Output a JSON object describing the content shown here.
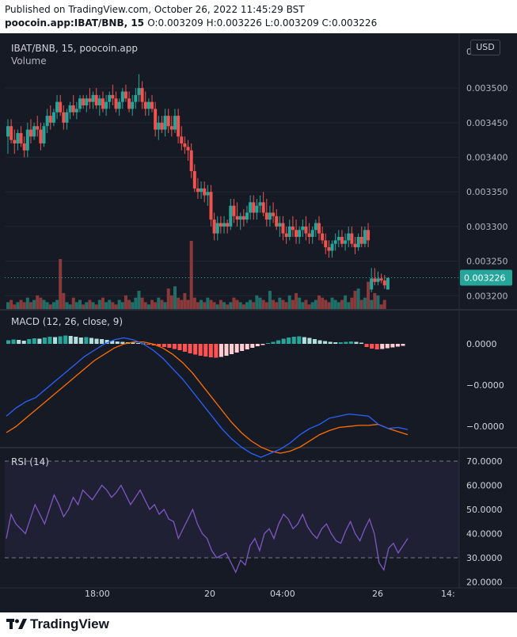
{
  "header": {
    "line1": "Published on TradingView.com, October 26, 2022 11:45:29 BST",
    "symbol": "poocoin.app:IBAT/BNB, 15",
    "ohlc": "O:0.003209 H:0.003226 L:0.003209 C:0.003226"
  },
  "chart_title": "IBAT/BNB, 15, poocoin.app",
  "volume_label": "Volume",
  "macd_label": "MACD (12, 26, close, 9)",
  "rsi_label": "RSI (14)",
  "currency_button": "USD",
  "brand": "TradingView",
  "colors": {
    "up": "#26a69a",
    "down": "#ef5350",
    "macd": "#2962ff",
    "signal": "#ff6d00",
    "rsi": "#7e57c2",
    "hist_up_strong": "#26a69a",
    "hist_up_weak": "#b2dfdb",
    "hist_down_strong": "#ff5252",
    "hist_down_weak": "#ffcdd2",
    "background": "#161a25"
  },
  "chart_data": [
    {
      "type": "candlestick",
      "title": "IBAT/BNB, 15, poocoin.app",
      "last_price": "0.003226",
      "price_ticks": [
        "0.003500",
        "0.003450",
        "0.003400",
        "0.003350",
        "0.003300",
        "0.003250",
        "0.003200"
      ],
      "price_range": [
        0.00319,
        0.00357
      ],
      "x_ticks": [
        "18:00",
        "20",
        "04:00",
        "26",
        "14:"
      ],
      "ohlc": [
        [
          0.00343,
          0.003455,
          0.003405,
          0.003445
        ],
        [
          0.003445,
          0.003455,
          0.00342,
          0.003425
        ],
        [
          0.003425,
          0.00344,
          0.003405,
          0.00342
        ],
        [
          0.00342,
          0.00344,
          0.00341,
          0.003435
        ],
        [
          0.003435,
          0.003445,
          0.003415,
          0.00342
        ],
        [
          0.00342,
          0.00343,
          0.0034,
          0.00341
        ],
        [
          0.00341,
          0.00345,
          0.0034,
          0.00344
        ],
        [
          0.00344,
          0.003455,
          0.00342,
          0.00343
        ],
        [
          0.00343,
          0.00345,
          0.003425,
          0.003445
        ],
        [
          0.003445,
          0.00346,
          0.00343,
          0.00344
        ],
        [
          0.00344,
          0.00345,
          0.00341,
          0.00342
        ],
        [
          0.00342,
          0.00345,
          0.003415,
          0.003445
        ],
        [
          0.003445,
          0.00347,
          0.003435,
          0.00346
        ],
        [
          0.00346,
          0.003475,
          0.00344,
          0.00345
        ],
        [
          0.00345,
          0.00347,
          0.003445,
          0.003465
        ],
        [
          0.003465,
          0.00349,
          0.003455,
          0.00348
        ],
        [
          0.00348,
          0.00349,
          0.00346,
          0.003465
        ],
        [
          0.003465,
          0.003475,
          0.00344,
          0.00345
        ],
        [
          0.00345,
          0.00347,
          0.00344,
          0.003465
        ],
        [
          0.003465,
          0.00348,
          0.003455,
          0.003475
        ],
        [
          0.003475,
          0.00349,
          0.00346,
          0.003465
        ],
        [
          0.003465,
          0.00348,
          0.003455,
          0.00347
        ],
        [
          0.00347,
          0.00349,
          0.003465,
          0.003485
        ],
        [
          0.003485,
          0.00349,
          0.00347,
          0.003475
        ],
        [
          0.003475,
          0.00349,
          0.003465,
          0.003485
        ],
        [
          0.003485,
          0.0035,
          0.00347,
          0.00348
        ],
        [
          0.00348,
          0.003495,
          0.00347,
          0.00349
        ],
        [
          0.00349,
          0.0035,
          0.00347,
          0.003475
        ],
        [
          0.003475,
          0.00349,
          0.00346,
          0.003485
        ],
        [
          0.003485,
          0.003495,
          0.003465,
          0.00347
        ],
        [
          0.00347,
          0.00349,
          0.00346,
          0.00348
        ],
        [
          0.00348,
          0.003495,
          0.00347,
          0.00349
        ],
        [
          0.00349,
          0.003505,
          0.003475,
          0.003485
        ],
        [
          0.003485,
          0.003495,
          0.003465,
          0.00347
        ],
        [
          0.00347,
          0.003485,
          0.00346,
          0.00348
        ],
        [
          0.00348,
          0.0035,
          0.00347,
          0.003495
        ],
        [
          0.003495,
          0.003505,
          0.00348,
          0.003485
        ],
        [
          0.003485,
          0.003495,
          0.003465,
          0.00347
        ],
        [
          0.00347,
          0.00349,
          0.00346,
          0.00348
        ],
        [
          0.00348,
          0.0035,
          0.00347,
          0.00349
        ],
        [
          0.00349,
          0.00352,
          0.00348,
          0.0035
        ],
        [
          0.0035,
          0.00351,
          0.00347,
          0.00348
        ],
        [
          0.00348,
          0.003495,
          0.00346,
          0.00347
        ],
        [
          0.00347,
          0.003485,
          0.00346,
          0.00348
        ],
        [
          0.00348,
          0.00349,
          0.003465,
          0.00347
        ],
        [
          0.00347,
          0.00348,
          0.00343,
          0.00344
        ],
        [
          0.00344,
          0.00346,
          0.003425,
          0.00345
        ],
        [
          0.00345,
          0.00346,
          0.003435,
          0.00344
        ],
        [
          0.00344,
          0.00347,
          0.00343,
          0.00346
        ],
        [
          0.00346,
          0.00347,
          0.003435,
          0.003445
        ],
        [
          0.003445,
          0.00346,
          0.00343,
          0.00344
        ],
        [
          0.00344,
          0.00347,
          0.003435,
          0.00346
        ],
        [
          0.00346,
          0.00347,
          0.00342,
          0.00343
        ],
        [
          0.00343,
          0.003445,
          0.00341,
          0.00342
        ],
        [
          0.00342,
          0.00343,
          0.003405,
          0.003415
        ],
        [
          0.003415,
          0.003425,
          0.003395,
          0.00341
        ],
        [
          0.00341,
          0.00342,
          0.00337,
          0.00338
        ],
        [
          0.00338,
          0.00339,
          0.00335,
          0.003355
        ],
        [
          0.003355,
          0.00337,
          0.00334,
          0.00335
        ],
        [
          0.00335,
          0.003365,
          0.00334,
          0.003355
        ],
        [
          0.003355,
          0.003365,
          0.003335,
          0.003345
        ],
        [
          0.003345,
          0.00336,
          0.00333,
          0.00335
        ],
        [
          0.00335,
          0.00336,
          0.0033,
          0.00331
        ],
        [
          0.00331,
          0.00332,
          0.00328,
          0.00329
        ],
        [
          0.00329,
          0.003315,
          0.00328,
          0.003305
        ],
        [
          0.003305,
          0.003315,
          0.00329,
          0.0033
        ],
        [
          0.0033,
          0.003315,
          0.00329,
          0.003305
        ],
        [
          0.003305,
          0.00331,
          0.00329,
          0.0033
        ],
        [
          0.0033,
          0.00334,
          0.003295,
          0.00333
        ],
        [
          0.00333,
          0.00334,
          0.003305,
          0.003315
        ],
        [
          0.003315,
          0.003335,
          0.0033,
          0.00331
        ],
        [
          0.00331,
          0.00332,
          0.003295,
          0.003315
        ],
        [
          0.003315,
          0.003325,
          0.0033,
          0.00331
        ],
        [
          0.00331,
          0.00333,
          0.003305,
          0.00332
        ],
        [
          0.00332,
          0.003345,
          0.00331,
          0.003335
        ],
        [
          0.003335,
          0.003345,
          0.00331,
          0.00332
        ],
        [
          0.00332,
          0.00334,
          0.00331,
          0.00333
        ],
        [
          0.00333,
          0.003345,
          0.00332,
          0.003335
        ],
        [
          0.003335,
          0.00335,
          0.003315,
          0.00332
        ],
        [
          0.00332,
          0.00334,
          0.0033,
          0.00331
        ],
        [
          0.00331,
          0.00333,
          0.0033,
          0.00332
        ],
        [
          0.00332,
          0.003335,
          0.003305,
          0.003315
        ],
        [
          0.003315,
          0.003325,
          0.003295,
          0.0033
        ],
        [
          0.0033,
          0.003315,
          0.003285,
          0.003305
        ],
        [
          0.003305,
          0.003315,
          0.00328,
          0.00329
        ],
        [
          0.00329,
          0.0033,
          0.003275,
          0.003285
        ],
        [
          0.003285,
          0.00331,
          0.00328,
          0.0033
        ],
        [
          0.0033,
          0.003315,
          0.003285,
          0.003295
        ],
        [
          0.003295,
          0.00331,
          0.003275,
          0.003285
        ],
        [
          0.003285,
          0.0033,
          0.003275,
          0.003295
        ],
        [
          0.003295,
          0.00331,
          0.003285,
          0.0033
        ],
        [
          0.0033,
          0.003315,
          0.00328,
          0.00329
        ],
        [
          0.00329,
          0.003305,
          0.003275,
          0.003285
        ],
        [
          0.003285,
          0.0033,
          0.003275,
          0.003295
        ],
        [
          0.003295,
          0.00331,
          0.003285,
          0.003305
        ],
        [
          0.003305,
          0.003315,
          0.00328,
          0.00329
        ],
        [
          0.00329,
          0.0033,
          0.003275,
          0.00328
        ],
        [
          0.00328,
          0.00329,
          0.00326,
          0.00327
        ],
        [
          0.00327,
          0.00328,
          0.003255,
          0.003265
        ],
        [
          0.003265,
          0.00328,
          0.003255,
          0.003275
        ],
        [
          0.003275,
          0.00329,
          0.003265,
          0.00328
        ],
        [
          0.00328,
          0.003295,
          0.00327,
          0.003285
        ],
        [
          0.003285,
          0.003295,
          0.00327,
          0.003275
        ],
        [
          0.003275,
          0.00329,
          0.003265,
          0.00328
        ],
        [
          0.00328,
          0.0033,
          0.00327,
          0.00329
        ],
        [
          0.00329,
          0.0033,
          0.00327,
          0.003275
        ],
        [
          0.003275,
          0.003285,
          0.00326,
          0.00327
        ],
        [
          0.00327,
          0.00329,
          0.003265,
          0.003285
        ],
        [
          0.003285,
          0.0033,
          0.00327,
          0.003275
        ],
        [
          0.003275,
          0.0033,
          0.00327,
          0.003295
        ],
        [
          0.003295,
          0.003305,
          0.00327,
          0.00328
        ],
        [
          0.003209,
          0.00324,
          0.003205,
          0.003225
        ],
        [
          0.003225,
          0.00324,
          0.003215,
          0.00322
        ],
        [
          0.00322,
          0.003235,
          0.003215,
          0.003225
        ],
        [
          0.003225,
          0.003232,
          0.003218,
          0.003222
        ],
        [
          0.003222,
          0.00323,
          0.00321,
          0.003215
        ],
        [
          0.003209,
          0.003226,
          0.003209,
          0.003226
        ]
      ],
      "volume": [
        3,
        4,
        2,
        3,
        4,
        3,
        5,
        3,
        4,
        6,
        5,
        4,
        3,
        2,
        3,
        4,
        22,
        7,
        3,
        2,
        5,
        3,
        4,
        2,
        3,
        4,
        3,
        2,
        4,
        5,
        3,
        4,
        3,
        2,
        4,
        3,
        6,
        4,
        3,
        5,
        8,
        5,
        3,
        2,
        4,
        3,
        5,
        4,
        3,
        9,
        6,
        10,
        5,
        4,
        7,
        4,
        30,
        5,
        3,
        4,
        3,
        5,
        4,
        3,
        2,
        4,
        3,
        2,
        3,
        5,
        4,
        3,
        2,
        3,
        4,
        3,
        6,
        5,
        4,
        3,
        8,
        4,
        3,
        5,
        4,
        3,
        6,
        4,
        7,
        5,
        3,
        4,
        2,
        3,
        4,
        6,
        5,
        4,
        3,
        5,
        4,
        3,
        4,
        6,
        3,
        5,
        8,
        9,
        4,
        5,
        12,
        4,
        7,
        6,
        2,
        4
      ],
      "macd_hist": [
        0.9,
        1.1,
        1.0,
        0.8,
        1.2,
        1.4,
        1.3,
        1.6,
        1.8,
        1.7,
        1.9,
        2.1,
        2.0,
        1.8,
        1.6,
        1.7,
        1.5,
        1.3,
        1.2,
        1.0,
        0.8,
        0.6,
        0.5,
        0.4,
        0.3,
        0.2,
        0.1,
        -0.2,
        -0.4,
        -0.6,
        -0.8,
        -1.0,
        -1.3,
        -1.6,
        -2.0,
        -2.4,
        -2.7,
        -3.0,
        -3.2,
        -3.4,
        -3.5,
        -3.3,
        -3.0,
        -2.6,
        -2.2,
        -1.8,
        -1.4,
        -1.0,
        -0.6,
        -0.3,
        0.2,
        0.5,
        0.9,
        1.3,
        1.6,
        1.8,
        1.9,
        1.7,
        1.5,
        1.2,
        0.9,
        0.7,
        0.5,
        0.4,
        0.4,
        0.5,
        0.6,
        0.5,
        0.3,
        -0.8,
        -1.2,
        -1.4,
        -1.3,
        -1.1,
        -0.9,
        -0.7,
        -0.5
      ],
      "macd_line": [
        -1.2,
        -0.8,
        -0.5,
        -0.3,
        0.1,
        0.5,
        0.9,
        1.3,
        1.7,
        2.0,
        2.3,
        2.5,
        2.6,
        2.5,
        2.3,
        2.0,
        1.6,
        1.1,
        0.6,
        0.0,
        -0.6,
        -1.2,
        -1.8,
        -2.3,
        -2.7,
        -3.0,
        -3.2,
        -3.0,
        -2.8,
        -2.5,
        -2.1,
        -1.8,
        -1.6,
        -1.3,
        -1.2,
        -1.1,
        -1.15,
        -1.2,
        -1.6,
        -1.8,
        -1.75,
        -1.85
      ],
      "signal_line": [
        -2.0,
        -1.7,
        -1.3,
        -0.9,
        -0.5,
        -0.1,
        0.3,
        0.7,
        1.1,
        1.5,
        1.8,
        2.1,
        2.3,
        2.4,
        2.4,
        2.3,
        2.1,
        1.8,
        1.4,
        0.9,
        0.3,
        -0.3,
        -0.9,
        -1.5,
        -2.0,
        -2.4,
        -2.7,
        -2.9,
        -3.0,
        -2.9,
        -2.7,
        -2.4,
        -2.1,
        -1.9,
        -1.75,
        -1.7,
        -1.65,
        -1.65,
        -1.6,
        -1.8,
        -1.95,
        -2.1
      ],
      "macd_ticks": [
        "0.0000",
        "−0.0000",
        "−0.0000"
      ],
      "rsi": [
        38,
        48,
        44,
        42,
        40,
        46,
        52,
        48,
        44,
        50,
        56,
        52,
        47,
        50,
        55,
        52,
        58,
        56,
        54,
        57,
        60,
        58,
        55,
        57,
        60,
        56,
        52,
        55,
        58,
        54,
        50,
        52,
        48,
        50,
        46,
        45,
        38,
        42,
        46,
        50,
        44,
        40,
        38,
        33,
        30,
        31,
        32,
        28,
        24,
        29,
        27,
        35,
        38,
        33,
        40,
        42,
        38,
        44,
        48,
        46,
        42,
        44,
        48,
        43,
        40,
        38,
        42,
        44,
        40,
        37,
        36,
        41,
        45,
        40,
        37,
        42,
        46,
        40,
        28,
        25,
        34,
        36,
        32,
        35,
        38
      ],
      "rsi_ticks": [
        "70.0000",
        "60.0000",
        "50.0000",
        "40.0000",
        "30.0000",
        "20.0000"
      ],
      "rsi_bands": [
        30,
        70
      ]
    }
  ]
}
